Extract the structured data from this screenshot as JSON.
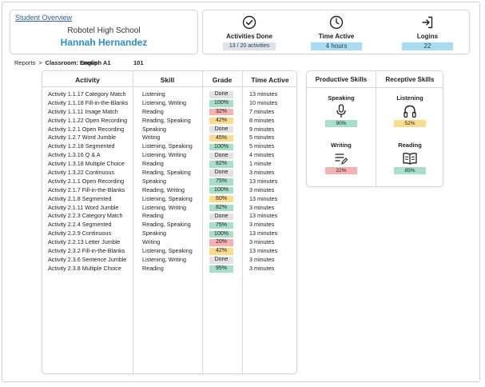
{
  "header": {
    "overview_link": "Student Overview",
    "school": "Robotel High School",
    "student_name": "Hannah Hernandez"
  },
  "stats": {
    "activities": {
      "label": "Activities Done",
      "value": "13 / 20 activities",
      "icon": "check-circle-icon"
    },
    "time": {
      "label": "Time Active",
      "value": "4 hours",
      "icon": "clock-icon"
    },
    "logins": {
      "label": "Logins",
      "value": "22",
      "icon": "login-icon"
    }
  },
  "breadcrumb": {
    "reports": "Reports",
    "separator": ">",
    "classroom_label": "Classroom:",
    "classroom_name_a": "English A1",
    "classroom_name_b": "Group:",
    "group_id": "101"
  },
  "table": {
    "headers": {
      "activity": "Activity",
      "skill": "Skill",
      "grade": "Grade",
      "time": "Time Active"
    },
    "rows": [
      {
        "activity": "Activity 1.1.17 Category Match",
        "skill": "Listening",
        "grade": "Done",
        "time": "13 minutes"
      },
      {
        "activity": "Activity 1.1.18 Fill-in-the-Blanks",
        "skill": "Listening, Writing",
        "grade": "100%",
        "time": "10 minutes"
      },
      {
        "activity": "Activity 1.1.11 Image Match",
        "skill": "Reading",
        "grade": "32%",
        "time": "7 minutes"
      },
      {
        "activity": "Activity 1.1.22 Open Recording",
        "skill": "Reading, Speaking",
        "grade": "42%",
        "time": "8 minutes"
      },
      {
        "activity": "Activity 1.2.1 Open Recording",
        "skill": "Speaking",
        "grade": "Done",
        "time": "9 minutes"
      },
      {
        "activity": "Activity 1.2.7 Word Jumble",
        "skill": "Writing",
        "grade": "45%",
        "time": "5 minutes"
      },
      {
        "activity": "Activity 1.2.18 Segmented",
        "skill": "Listening, Speaking",
        "grade": "100%",
        "time": "5 minutes"
      },
      {
        "activity": "Activity 1.3.16 Q & A",
        "skill": "Listening, Writing",
        "grade": "Done",
        "time": "4 minutes"
      },
      {
        "activity": "Activity 1.3.18 Multiple Choice",
        "skill": "Reading",
        "grade": "82%",
        "time": "1 minute"
      },
      {
        "activity": "Activity 1.3.22 Continuous",
        "skill": "Reading, Speaking",
        "grade": "Done",
        "time": "3 minutes"
      },
      {
        "activity": "Activity 2.1.1 Open Recording",
        "skill": "Speaking",
        "grade": "75%",
        "time": "13 minutes"
      },
      {
        "activity": "Activity 2.1.7 Fill-in-the-Blanks",
        "skill": "Reading, Writing",
        "grade": "100%",
        "time": "3 minutes"
      },
      {
        "activity": "Activity 2.1.8 Segmented",
        "skill": "Listening, Speaking",
        "grade": "60%",
        "time": "13 minutes"
      },
      {
        "activity": "Activity 2.1.11 Word Jumble",
        "skill": "Listening, Writing",
        "grade": "82%",
        "time": "3 minutes"
      },
      {
        "activity": "Activity 2.2.3 Category Match",
        "skill": "Reading",
        "grade": "Done",
        "time": "13 minutes"
      },
      {
        "activity": "Activity 2.2.4 Segmented",
        "skill": "Reading, Speaking",
        "grade": "75%",
        "time": "3 minutes"
      },
      {
        "activity": "Activity 2.2.9 Continuous",
        "skill": "Speaking",
        "grade": "100%",
        "time": "13 minutes"
      },
      {
        "activity": "Activity 2.2.13 Letter Jumble",
        "skill": "Writing",
        "grade": "20%",
        "time": "3 minutes"
      },
      {
        "activity": "Activity 2.3.2 Fill-in-the-Blanks",
        "skill": "Listening, Speaking",
        "grade": "42%",
        "time": "13 minutes"
      },
      {
        "activity": "Activity 2.3.6 Sentence Jumble",
        "skill": "Listening, Writing",
        "grade": "Done",
        "time": "3 minutes"
      },
      {
        "activity": "Activity 2.3.8 Multiple Choice",
        "skill": "Reading",
        "grade": "95%",
        "time": "3 minutes"
      }
    ]
  },
  "skills": {
    "productive_header": "Productive Skills",
    "receptive_header": "Receptive Skills",
    "speaking": {
      "label": "Speaking",
      "value": "90%",
      "icon": "microphone-icon"
    },
    "writing": {
      "label": "Writing",
      "value": "22%",
      "icon": "writing-icon"
    },
    "listening": {
      "label": "Listening",
      "value": "52%",
      "icon": "headphones-icon"
    },
    "reading": {
      "label": "Reading",
      "value": "85%",
      "icon": "book-icon"
    }
  },
  "colors": {
    "name_blue": "#2491c9",
    "link_blue": "#2a5db0",
    "stat_blue": "#a6dcf5",
    "grade_green": "#a6e0c9",
    "grade_yellow": "#fbdc8a",
    "grade_red": "#f6b2b0",
    "grade_done": "#e3e3e3"
  }
}
